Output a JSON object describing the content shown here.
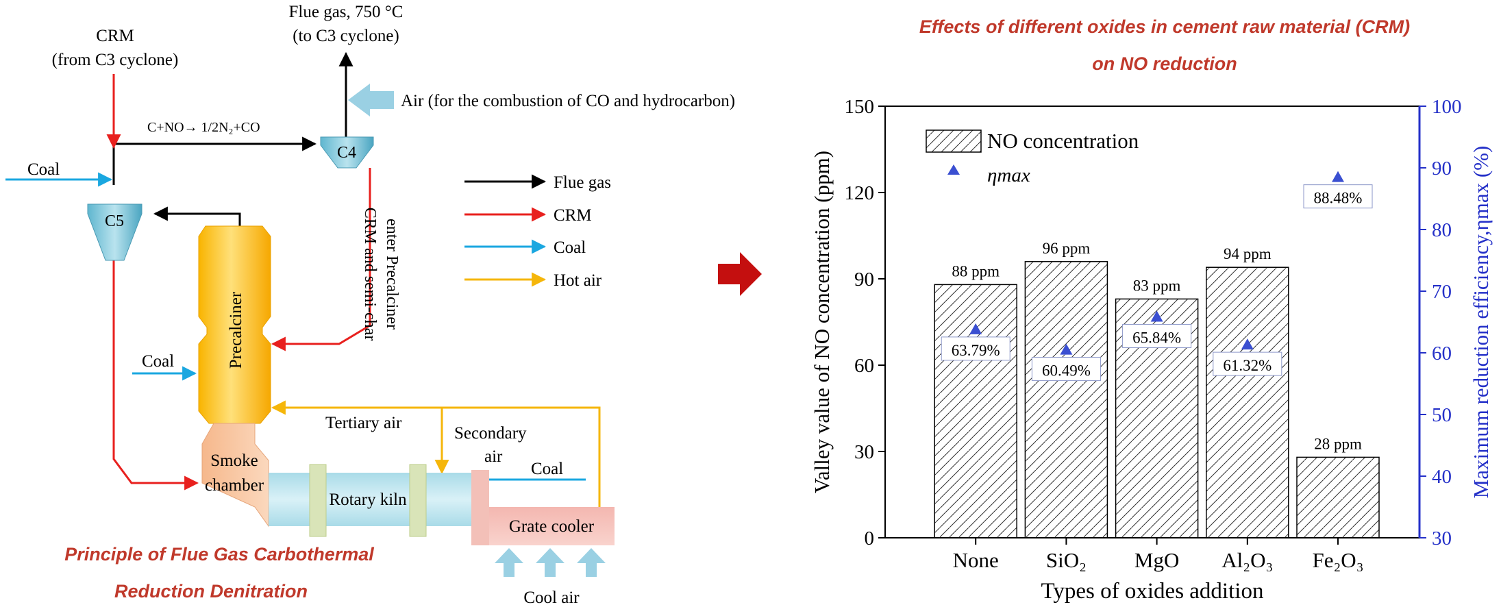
{
  "process_diagram": {
    "title_line1": "Principle of Flue Gas Carbothermal",
    "title_line2": "Reduction Denitration",
    "crm_top_line1": "CRM",
    "crm_top_line2": "(from C3 cyclone)",
    "flue_gas_line1": "Flue gas, 750 °C",
    "flue_gas_line2": "(to C3 cyclone)",
    "air_label": "Air (for the combustion of CO and hydrocarbon)",
    "reaction_label": "C+NO→ 1/2N₂+CO",
    "coal_top": "Coal",
    "coal_mid": "Coal",
    "coal_right": "Coal",
    "cyclone_c4": "C4",
    "cyclone_c5": "C5",
    "precalciner": "Precalciner",
    "crm_semichar_line1": "CRM and semi-char",
    "crm_semichar_line2": "enter Precalciner",
    "tertiary_air": "Tertiary air",
    "secondary_air_line1": "Secondary",
    "secondary_air_line2": "air",
    "smoke_chamber_line1": "Smoke",
    "smoke_chamber_line2": "chamber",
    "rotary_kiln": "Rotary kiln",
    "grate_cooler": "Grate cooler",
    "cool_air": "Cool air",
    "legend": [
      {
        "label": "Flue gas",
        "color": "#000000"
      },
      {
        "label": "CRM",
        "color": "#e8201e"
      },
      {
        "label": "Coal",
        "color": "#1aa7e0"
      },
      {
        "label": "Hot air",
        "color": "#f5b60a"
      }
    ]
  },
  "chart_title_line1": "Effects of different oxides in cement raw material (CRM)",
  "chart_title_line2": "on NO reduction",
  "chart_data": {
    "type": "bar",
    "categories": [
      "None",
      "SiO₂",
      "MgO",
      "Al₂O₃",
      "Fe₂O₃"
    ],
    "series": [
      {
        "name": "NO concentration",
        "values": [
          88,
          96,
          83,
          94,
          28
        ],
        "labels": [
          "88 ppm",
          "96 ppm",
          "83 ppm",
          "94 ppm",
          "28 ppm"
        ]
      },
      {
        "name": "ηmax",
        "values": [
          63.79,
          60.49,
          65.84,
          61.32,
          88.48
        ],
        "labels": [
          "63.79%",
          "60.49%",
          "65.84%",
          "61.32%",
          "88.48%"
        ]
      }
    ],
    "xlabel": "Types of oxides addition",
    "ylabel": "Valley value of NO concentration (ppm)",
    "ylabel_right": "Maximum reduction efficiency,ηmax (%)",
    "ylim": [
      0,
      150
    ],
    "ylim_right": [
      30,
      100
    ],
    "yticks": [
      "0",
      "30",
      "60",
      "90",
      "120",
      "150"
    ],
    "yticks_right": [
      "30",
      "40",
      "50",
      "60",
      "70",
      "80",
      "90",
      "100"
    ],
    "legend_position": "top-left",
    "colors": {
      "bar_hatch": "#000000",
      "marker": "#3a4fd1",
      "right_axis": "#2430c8"
    }
  }
}
